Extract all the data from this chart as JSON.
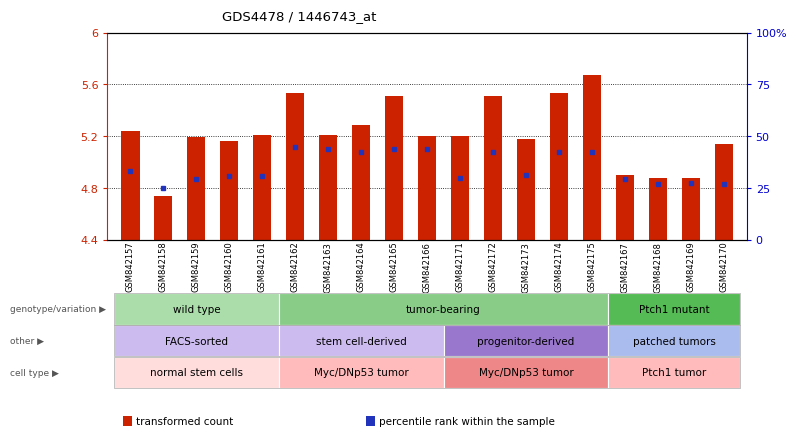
{
  "title": "GDS4478 / 1446743_at",
  "samples": [
    "GSM842157",
    "GSM842158",
    "GSM842159",
    "GSM842160",
    "GSM842161",
    "GSM842162",
    "GSM842163",
    "GSM842164",
    "GSM842165",
    "GSM842166",
    "GSM842171",
    "GSM842172",
    "GSM842173",
    "GSM842174",
    "GSM842175",
    "GSM842167",
    "GSM842168",
    "GSM842169",
    "GSM842170"
  ],
  "bar_heights": [
    5.24,
    4.74,
    5.19,
    5.16,
    5.21,
    5.53,
    5.21,
    5.29,
    5.51,
    5.2,
    5.2,
    5.51,
    5.18,
    5.53,
    5.67,
    4.9,
    4.88,
    4.88,
    5.14
  ],
  "blue_positions": [
    4.93,
    4.8,
    4.87,
    4.89,
    4.89,
    5.12,
    5.1,
    5.08,
    5.1,
    5.1,
    4.88,
    5.08,
    4.9,
    5.08,
    5.08,
    4.87,
    4.83,
    4.84,
    4.83
  ],
  "ymin": 4.4,
  "ymax": 6.0,
  "yticks": [
    4.4,
    4.8,
    5.2,
    5.6,
    6.0
  ],
  "ytick_labels": [
    "4.4",
    "4.8",
    "5.2",
    "5.6",
    "6"
  ],
  "right_ytick_pcts": [
    0,
    25,
    50,
    75,
    100
  ],
  "right_ytick_labels": [
    "0",
    "25",
    "50",
    "75",
    "100%"
  ],
  "bar_color": "#cc2200",
  "blue_color": "#2233bb",
  "bar_width": 0.55,
  "groups": [
    {
      "label": "wild type",
      "start": 0,
      "end": 4,
      "color": "#aaddaa",
      "row": "genotype"
    },
    {
      "label": "tumor-bearing",
      "start": 5,
      "end": 14,
      "color": "#88cc88",
      "row": "genotype"
    },
    {
      "label": "Ptch1 mutant",
      "start": 15,
      "end": 18,
      "color": "#55bb55",
      "row": "genotype"
    },
    {
      "label": "FACS-sorted",
      "start": 0,
      "end": 4,
      "color": "#ccbbee",
      "row": "other"
    },
    {
      "label": "stem cell-derived",
      "start": 5,
      "end": 9,
      "color": "#ccbbee",
      "row": "other"
    },
    {
      "label": "progenitor-derived",
      "start": 10,
      "end": 14,
      "color": "#9977cc",
      "row": "other"
    },
    {
      "label": "patched tumors",
      "start": 15,
      "end": 18,
      "color": "#aabbee",
      "row": "other"
    },
    {
      "label": "normal stem cells",
      "start": 0,
      "end": 4,
      "color": "#ffdddd",
      "row": "cell_type"
    },
    {
      "label": "Myc/DNp53 tumor",
      "start": 5,
      "end": 9,
      "color": "#ffbbbb",
      "row": "cell_type"
    },
    {
      "label": "Myc/DNp53 tumor",
      "start": 10,
      "end": 14,
      "color": "#ee8888",
      "row": "cell_type"
    },
    {
      "label": "Ptch1 tumor",
      "start": 15,
      "end": 18,
      "color": "#ffbbbb",
      "row": "cell_type"
    }
  ],
  "row_labels": [
    "genotype/variation",
    "other",
    "cell type"
  ],
  "row_keys": [
    "genotype",
    "other",
    "cell_type"
  ],
  "legend": [
    {
      "label": "transformed count",
      "color": "#cc2200"
    },
    {
      "label": "percentile rank within the sample",
      "color": "#2233bb"
    }
  ]
}
